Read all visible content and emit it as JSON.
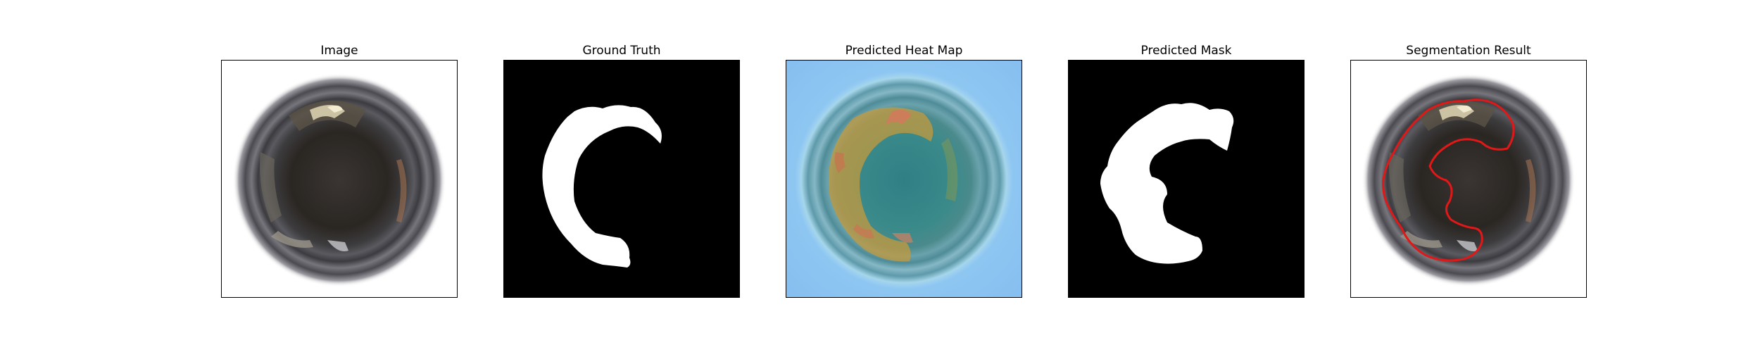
{
  "figure": {
    "panels": [
      {
        "title": "Image"
      },
      {
        "title": "Ground Truth"
      },
      {
        "title": "Predicted Heat Map"
      },
      {
        "title": "Predicted Mask"
      },
      {
        "title": "Segmentation Result"
      }
    ]
  },
  "colors": {
    "mask_foreground": "#ffffff",
    "mask_background": "#000000",
    "contour": "#e01818",
    "heatmap_low": "#8ec9f0",
    "heatmap_high": "#c98a3a"
  },
  "icons": {
    "image": "pipe-interior-photo",
    "ground_truth": "binary-mask",
    "heat_map": "probability-heatmap",
    "predicted_mask": "binary-mask",
    "segmentation": "contour-overlay"
  }
}
